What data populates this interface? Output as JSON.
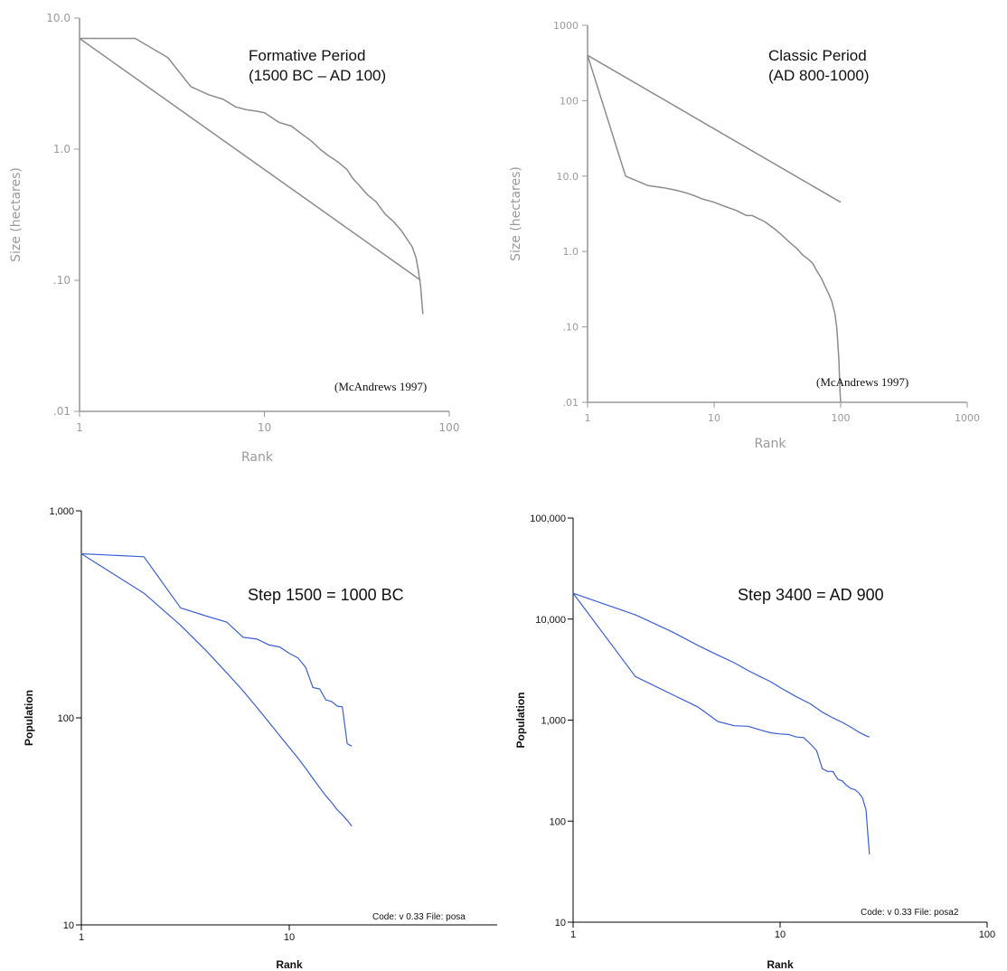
{
  "chart_data": [
    {
      "type": "line",
      "style": "scan",
      "title_lines": [
        "Formative Period",
        "(1500 BC – AD 100)"
      ],
      "xlabel": "Rank",
      "ylabel": "Size (hectares)",
      "annotation": "(McAndrews  1997)",
      "x_scale": "log",
      "y_scale": "log",
      "xlim": [
        1,
        100
      ],
      "ylim": [
        0.01,
        10
      ],
      "x_ticks": [
        {
          "v": 1,
          "label": "1"
        },
        {
          "v": 10,
          "label": "10"
        },
        {
          "v": 100,
          "label": "100"
        }
      ],
      "y_ticks": [
        {
          "v": 10,
          "label": "10.0"
        },
        {
          "v": 1,
          "label": "1.0"
        },
        {
          "v": 0.1,
          "label": ".10"
        },
        {
          "v": 0.01,
          "label": ".01"
        }
      ],
      "colors": {
        "axis": "#9a9a9a",
        "line": "#8c8c8c"
      },
      "series": [
        {
          "x": [
            1,
            70
          ],
          "y": [
            7.0,
            0.1
          ]
        },
        {
          "x": [
            1,
            2,
            3,
            4,
            5,
            6,
            7,
            8,
            9,
            10,
            12,
            14,
            16,
            18,
            20,
            22,
            25,
            28,
            30,
            33,
            36,
            40,
            45,
            50,
            55,
            60,
            63,
            66,
            68,
            70,
            72
          ],
          "y": [
            7.0,
            7.0,
            5.0,
            3.0,
            2.6,
            2.4,
            2.1,
            2.0,
            1.95,
            1.9,
            1.6,
            1.5,
            1.3,
            1.15,
            1.0,
            0.9,
            0.8,
            0.7,
            0.6,
            0.52,
            0.45,
            0.4,
            0.32,
            0.28,
            0.24,
            0.2,
            0.18,
            0.15,
            0.12,
            0.09,
            0.055
          ]
        }
      ]
    },
    {
      "type": "line",
      "style": "scan",
      "title_lines": [
        "Classic Period",
        "(AD 800-1000)"
      ],
      "xlabel": "Rank",
      "ylabel": "Size (hectares)",
      "annotation": "(McAndrews  1997)",
      "x_scale": "log",
      "y_scale": "log",
      "xlim": [
        1,
        1000
      ],
      "ylim": [
        0.01,
        1000
      ],
      "x_ticks": [
        {
          "v": 1,
          "label": "1"
        },
        {
          "v": 10,
          "label": "10"
        },
        {
          "v": 100,
          "label": "100"
        },
        {
          "v": 1000,
          "label": "1000"
        }
      ],
      "y_ticks": [
        {
          "v": 1000,
          "label": "1000"
        },
        {
          "v": 100,
          "label": "100"
        },
        {
          "v": 10,
          "label": "10.0"
        },
        {
          "v": 1,
          "label": "1.0"
        },
        {
          "v": 0.1,
          "label": ".10"
        },
        {
          "v": 0.01,
          "label": ".01"
        }
      ],
      "colors": {
        "axis": "#9a9a9a",
        "line": "#8c8c8c"
      },
      "series": [
        {
          "x": [
            1,
            100
          ],
          "y": [
            400,
            4.5
          ]
        },
        {
          "x": [
            1,
            2,
            3,
            4,
            5,
            6,
            7,
            8,
            10,
            12,
            15,
            18,
            20,
            25,
            30,
            35,
            40,
            45,
            50,
            55,
            60,
            65,
            70,
            75,
            80,
            85,
            90,
            93,
            95,
            97,
            98,
            99,
            100
          ],
          "y": [
            400,
            10,
            7.5,
            7,
            6.5,
            6,
            5.5,
            5,
            4.5,
            4,
            3.5,
            3,
            3,
            2.5,
            2,
            1.6,
            1.3,
            1.1,
            0.9,
            0.8,
            0.7,
            0.55,
            0.45,
            0.35,
            0.28,
            0.22,
            0.15,
            0.1,
            0.06,
            0.035,
            0.02,
            0.013,
            0.01
          ]
        }
      ]
    },
    {
      "type": "line",
      "style": "excel",
      "title_lines": [
        "Step 1500 = 1000 BC"
      ],
      "xlabel": "Rank",
      "ylabel": "Population",
      "annotation": "Code: v 0.33  File: posa",
      "x_scale": "log",
      "y_scale": "log",
      "xlim": [
        1,
        100
      ],
      "ylim": [
        10,
        1000
      ],
      "x_ticks": [
        {
          "v": 1,
          "label": "1"
        },
        {
          "v": 10,
          "label": "10"
        }
      ],
      "y_ticks": [
        {
          "v": 1000,
          "label": "1,000"
        },
        {
          "v": 100,
          "label": "100"
        },
        {
          "v": 10,
          "label": "10"
        }
      ],
      "colors": {
        "axis": "#000000",
        "line": "#3a5fd4"
      },
      "series": [
        {
          "x": [
            1,
            2,
            3,
            4,
            5,
            6,
            7,
            8,
            9,
            10,
            11,
            12,
            13,
            14,
            15,
            16,
            17,
            18,
            19,
            20
          ],
          "y": [
            620,
            400,
            280,
            210,
            165,
            135,
            112,
            95,
            82,
            72,
            64,
            57,
            51,
            46,
            42,
            39,
            36,
            34,
            32,
            30
          ]
        },
        {
          "x": [
            1,
            2,
            3,
            4,
            5,
            6,
            7,
            8,
            9,
            10,
            11,
            12,
            13,
            14,
            15,
            16,
            17,
            18,
            19,
            20
          ],
          "y": [
            620,
            600,
            340,
            310,
            290,
            245,
            240,
            225,
            220,
            205,
            195,
            175,
            140,
            138,
            122,
            120,
            114,
            113,
            75,
            73
          ]
        }
      ]
    },
    {
      "type": "line",
      "style": "excel",
      "title_lines": [
        "Step 3400 = AD 900"
      ],
      "xlabel": "Rank",
      "ylabel": "Population",
      "annotation": "Code: v 0.33  File: posa2",
      "x_scale": "log",
      "y_scale": "log",
      "xlim": [
        1,
        100
      ],
      "ylim": [
        10,
        100000
      ],
      "x_ticks": [
        {
          "v": 1,
          "label": "1"
        },
        {
          "v": 10,
          "label": "10"
        },
        {
          "v": 100,
          "label": "100"
        }
      ],
      "y_ticks": [
        {
          "v": 100000,
          "label": "100,000"
        },
        {
          "v": 10000,
          "label": "10,000"
        },
        {
          "v": 1000,
          "label": "1,000"
        },
        {
          "v": 100,
          "label": "100"
        },
        {
          "v": 10,
          "label": "10"
        }
      ],
      "colors": {
        "axis": "#000000",
        "line": "#3a5fd4"
      },
      "series": [
        {
          "x": [
            1,
            2,
            3,
            4,
            5,
            6,
            7,
            8,
            9,
            10,
            12,
            14,
            16,
            18,
            20,
            22,
            24,
            26,
            27
          ],
          "y": [
            18000,
            11000,
            7500,
            5500,
            4400,
            3700,
            3100,
            2700,
            2400,
            2100,
            1700,
            1450,
            1200,
            1050,
            950,
            850,
            760,
            700,
            680
          ]
        },
        {
          "x": [
            1,
            2,
            3,
            4,
            5,
            6,
            7,
            8,
            9,
            10,
            11,
            12,
            13,
            14,
            15,
            16,
            17,
            18,
            19,
            20,
            21,
            22,
            23,
            24,
            25,
            26,
            27
          ],
          "y": [
            18000,
            2700,
            1800,
            1350,
            970,
            880,
            870,
            800,
            750,
            730,
            720,
            680,
            670,
            580,
            500,
            330,
            310,
            310,
            260,
            250,
            225,
            210,
            205,
            190,
            170,
            130,
            47
          ]
        }
      ]
    }
  ]
}
